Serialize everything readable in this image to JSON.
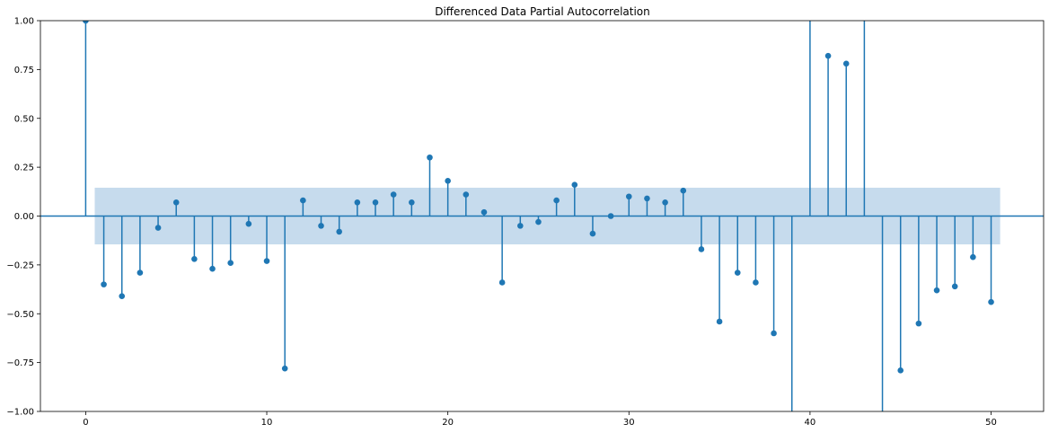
{
  "chart_data": {
    "type": "stem",
    "title": "Differenced Data Partial Autocorrelation",
    "xlabel": "",
    "ylabel": "",
    "xlim": [
      -2.5,
      52.9
    ],
    "ylim": [
      -1.0,
      1.0
    ],
    "xticks": [
      0,
      10,
      20,
      30,
      40,
      50
    ],
    "xtick_labels": [
      "0",
      "10",
      "20",
      "30",
      "40",
      "50"
    ],
    "yticks": [
      -1.0,
      -0.75,
      -0.5,
      -0.25,
      0.0,
      0.25,
      0.5,
      0.75,
      1.0
    ],
    "ytick_labels": [
      "−1.00",
      "−0.75",
      "−0.50",
      "−0.25",
      "0.00",
      "0.25",
      "0.50",
      "0.75",
      "1.00"
    ],
    "confidence_interval": {
      "x_start": 0.5,
      "x_end": 50.5,
      "lower": -0.145,
      "upper": 0.145
    },
    "lags": [
      0,
      1,
      2,
      3,
      4,
      5,
      6,
      7,
      8,
      9,
      10,
      11,
      12,
      13,
      14,
      15,
      16,
      17,
      18,
      19,
      20,
      21,
      22,
      23,
      24,
      25,
      26,
      27,
      28,
      29,
      30,
      31,
      32,
      33,
      34,
      35,
      36,
      37,
      38,
      39,
      40,
      41,
      42,
      43,
      44,
      45,
      46,
      47,
      48,
      49,
      50
    ],
    "values": [
      1.0,
      -0.35,
      -0.41,
      -0.29,
      -0.06,
      0.07,
      -0.22,
      -0.27,
      -0.24,
      -0.04,
      -0.23,
      -0.78,
      0.08,
      -0.05,
      -0.08,
      0.07,
      0.07,
      0.11,
      0.07,
      0.3,
      0.18,
      0.11,
      0.02,
      -0.34,
      -0.05,
      -0.03,
      0.08,
      0.16,
      -0.09,
      0.0,
      0.1,
      0.09,
      0.07,
      0.13,
      -0.17,
      -0.54,
      -0.29,
      -0.34,
      -0.6,
      -1.2,
      1.2,
      0.82,
      0.78,
      1.2,
      -1.2,
      -0.79,
      -0.55,
      -0.38,
      -0.36,
      -0.21,
      -0.44
    ],
    "colors": {
      "stem": "#1f77b4",
      "band": "#c6dbed",
      "zero_line": "#1f77b4"
    }
  }
}
